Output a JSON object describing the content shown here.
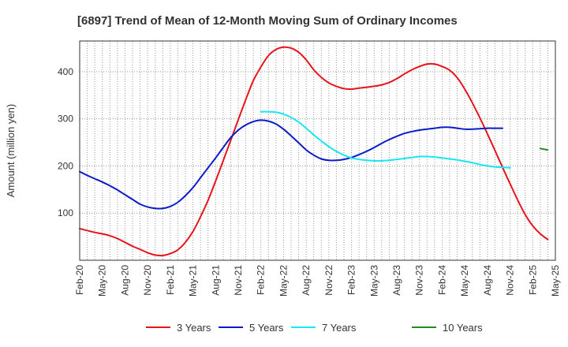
{
  "chart_data": {
    "type": "line",
    "title": "[6897]  Trend of Mean of 12-Month Moving Sum of Ordinary Incomes",
    "xlabel": "",
    "ylabel": "Amount (million yen)",
    "ylim": [
      0,
      465
    ],
    "yticks": [
      100,
      200,
      300,
      400
    ],
    "grid": true,
    "legend_position": "bottom",
    "x_tick_labels": [
      "Feb-20",
      "May-20",
      "Aug-20",
      "Nov-20",
      "Feb-21",
      "May-21",
      "Aug-21",
      "Nov-21",
      "Feb-22",
      "May-22",
      "Aug-22",
      "Nov-22",
      "Feb-23",
      "May-23",
      "Aug-23",
      "Nov-23",
      "Feb-24",
      "May-24",
      "Aug-24",
      "Nov-24",
      "Feb-25",
      "May-25"
    ],
    "series": [
      {
        "name": "3 Years",
        "color": "#e8141c",
        "start_index": 0,
        "values": [
          67,
          63,
          59,
          56,
          52,
          46,
          38,
          30,
          23,
          16,
          11,
          10,
          14,
          22,
          38,
          61,
          92,
          127,
          168,
          211,
          254,
          298,
          341,
          381,
          410,
          434,
          447,
          452,
          450,
          441,
          425,
          404,
          388,
          376,
          369,
          364,
          363,
          365,
          367,
          369,
          372,
          377,
          385,
          395,
          404,
          411,
          416,
          416,
          411,
          403,
          387,
          363,
          334,
          302,
          268,
          233,
          197,
          162,
          128,
          97,
          73,
          56,
          44
        ]
      },
      {
        "name": "5 Years",
        "color": "#0a1ac8",
        "start_index": 0,
        "values": [
          188,
          180,
          173,
          166,
          158,
          149,
          139,
          129,
          119,
          113,
          110,
          110,
          114,
          123,
          137,
          154,
          175,
          196,
          217,
          239,
          260,
          276,
          287,
          294,
          297,
          295,
          289,
          278,
          264,
          249,
          234,
          223,
          215,
          212,
          212,
          214,
          218,
          224,
          231,
          239,
          248,
          256,
          263,
          269,
          273,
          276,
          278,
          280,
          282,
          282,
          280,
          278,
          278,
          279,
          280,
          280,
          280
        ]
      },
      {
        "name": "7 Years",
        "color": "#19e6f0",
        "start_index": 24,
        "values": [
          315,
          315,
          314,
          310,
          303,
          293,
          280,
          266,
          253,
          241,
          231,
          223,
          217,
          214,
          212,
          211,
          211,
          212,
          214,
          216,
          218,
          220,
          220,
          219,
          217,
          215,
          213,
          210,
          207,
          203,
          200,
          198,
          197,
          196
        ]
      },
      {
        "name": "10 Years",
        "color": "#228b22",
        "start_index": 61,
        "values": [
          237,
          234
        ]
      }
    ]
  }
}
